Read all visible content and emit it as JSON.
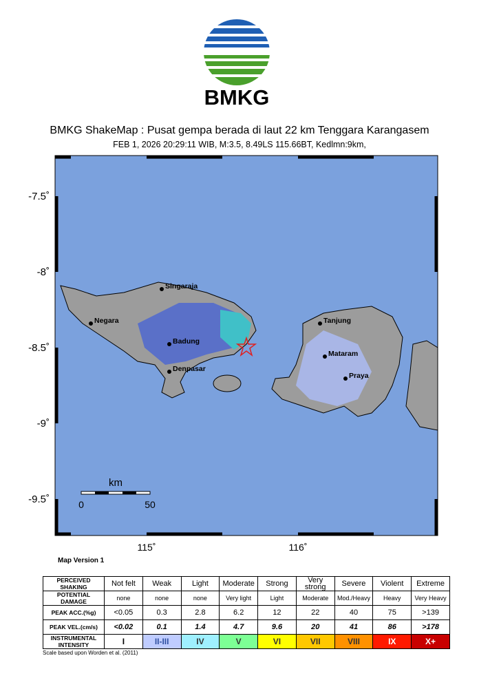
{
  "header": {
    "logo_text": "BMKG",
    "title": "BMKG ShakeMap : Pusat gempa berada di laut 22 km Tenggara Karangasem",
    "subtitle": "FEB 1, 2026 20:29:11 WIB, M:3.5, 8.49LS 115.66BT, Kedlmn:9km,"
  },
  "map": {
    "lat_labels": [
      "-7.5˚",
      "-8˚",
      "-8.5˚",
      "-9˚",
      "-9.5˚"
    ],
    "lon_labels": [
      "115˚",
      "116˚"
    ],
    "cities": [
      "Singaraja",
      "Negara",
      "Badung",
      "Denpasar",
      "Tanjung",
      "Mataram",
      "Praya"
    ],
    "scale": {
      "unit": "km",
      "labels": [
        "0",
        "50"
      ]
    },
    "version": "Map Version 1"
  },
  "legend": {
    "rows": [
      {
        "label": "PERCEIVED SHAKING",
        "cells": [
          "Not felt",
          "Weak",
          "Light",
          "Moderate",
          "Strong",
          "Very strong",
          "Severe",
          "Violent",
          "Extreme"
        ]
      },
      {
        "label": "POTENTIAL DAMAGE",
        "cells": [
          "none",
          "none",
          "none",
          "Very light",
          "Light",
          "Moderate",
          "Mod./Heavy",
          "Heavy",
          "Very Heavy"
        ]
      },
      {
        "label": "PEAK ACC.(%g)",
        "cells": [
          "<0.05",
          "0.3",
          "2.8",
          "6.2",
          "12",
          "22",
          "40",
          "75",
          ">139"
        ]
      },
      {
        "label": "PEAK VEL.(cm/s)",
        "cells": [
          "<0.02",
          "0.1",
          "1.4",
          "4.7",
          "9.6",
          "20",
          "41",
          "86",
          ">178"
        ]
      },
      {
        "label": "INSTRUMENTAL INTENSITY",
        "cells": [
          "I",
          "II-III",
          "IV",
          "V",
          "VI",
          "VII",
          "VIII",
          "IX",
          "X+"
        ]
      }
    ]
  },
  "footnote": "Scale based upon Worden et al. (2011)"
}
